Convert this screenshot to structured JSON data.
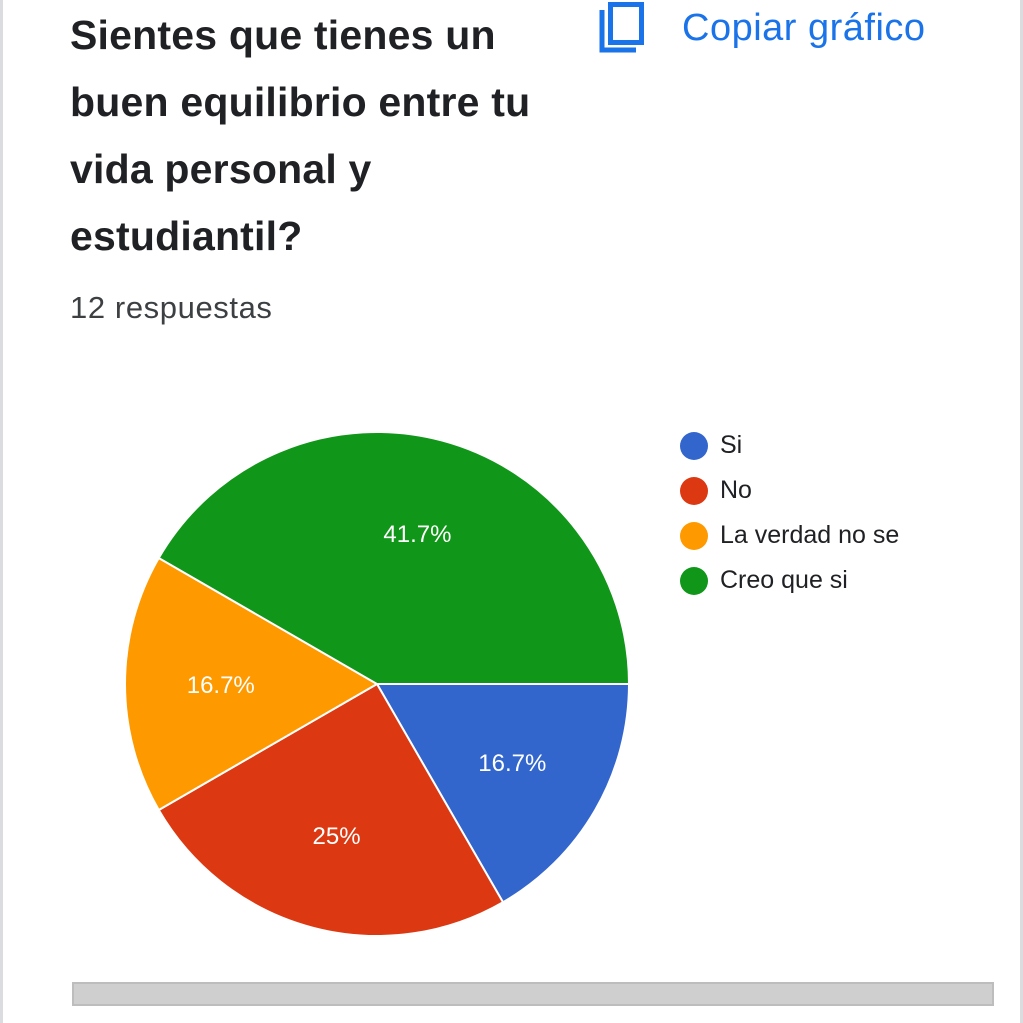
{
  "question": {
    "title": "Sientes que tienes un buen equilibrio entre tu vida personal y estudiantil?",
    "response_count": "12 respuestas"
  },
  "toolbar": {
    "copy_label": "Copiar gráfico",
    "copy_icon": "copy-icon"
  },
  "colors": {
    "accent": "#1a73e8",
    "si": "#3366cc",
    "no": "#dc3912",
    "la_verdad_no_se": "#ff9900",
    "creo_que_si": "#109618"
  },
  "chart_data": {
    "type": "pie",
    "title": "",
    "legend_position": "right",
    "slices": [
      {
        "label": "Si",
        "value": 2,
        "percent_label": "16.7%",
        "color": "#3366cc"
      },
      {
        "label": "No",
        "value": 3,
        "percent_label": "25%",
        "color": "#dc3912"
      },
      {
        "label": "La verdad no se",
        "value": 2,
        "percent_label": "16.7%",
        "color": "#ff9900"
      },
      {
        "label": "Creo que si",
        "value": 5,
        "percent_label": "41.7%",
        "color": "#109618"
      }
    ]
  }
}
